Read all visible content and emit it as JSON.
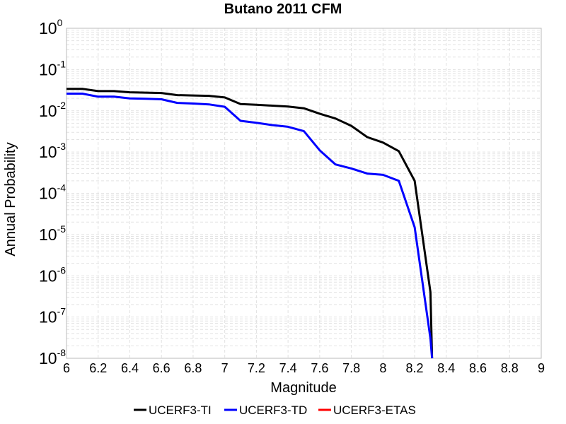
{
  "chart_data": {
    "type": "line",
    "title": "Butano 2011 CFM",
    "xlabel": "Magnitude",
    "ylabel": "Annual Probability",
    "xlim": [
      6,
      9
    ],
    "ylim": [
      1e-08,
      1
    ],
    "yscale": "log",
    "grid": true,
    "legend_position": "bottom",
    "x_ticks": [
      "6",
      "6.2",
      "6.4",
      "6.6",
      "6.8",
      "7",
      "7.2",
      "7.4",
      "7.6",
      "7.8",
      "8",
      "8.2",
      "8.4",
      "8.6",
      "8.8",
      "9"
    ],
    "y_ticks": [
      {
        "base": "10",
        "exp": "0"
      },
      {
        "base": "10",
        "exp": "-1"
      },
      {
        "base": "10",
        "exp": "-2"
      },
      {
        "base": "10",
        "exp": "-3"
      },
      {
        "base": "10",
        "exp": "-4"
      },
      {
        "base": "10",
        "exp": "-5"
      },
      {
        "base": "10",
        "exp": "-6"
      },
      {
        "base": "10",
        "exp": "-7"
      },
      {
        "base": "10",
        "exp": "-8"
      }
    ],
    "series": [
      {
        "name": "UCERF3-TI",
        "color": "#000000",
        "x": [
          6.0,
          6.1,
          6.2,
          6.3,
          6.4,
          6.5,
          6.6,
          6.7,
          6.8,
          6.9,
          7.0,
          7.1,
          7.2,
          7.3,
          7.4,
          7.5,
          7.6,
          7.7,
          7.8,
          7.9,
          8.0,
          8.1,
          8.2,
          8.3,
          8.31
        ],
        "y": [
          0.034,
          0.034,
          0.03,
          0.03,
          0.028,
          0.0275,
          0.027,
          0.024,
          0.0235,
          0.023,
          0.021,
          0.0145,
          0.014,
          0.0133,
          0.0127,
          0.0115,
          0.0085,
          0.0065,
          0.0043,
          0.0023,
          0.0017,
          0.00105,
          0.0002,
          4e-07,
          1e-08
        ]
      },
      {
        "name": "UCERF3-TD",
        "color": "#0000ff",
        "x": [
          6.0,
          6.1,
          6.2,
          6.3,
          6.4,
          6.5,
          6.6,
          6.7,
          6.8,
          6.9,
          7.0,
          7.1,
          7.2,
          7.3,
          7.4,
          7.5,
          7.6,
          7.7,
          7.8,
          7.9,
          8.0,
          8.1,
          8.2,
          8.3,
          8.31
        ],
        "y": [
          0.026,
          0.026,
          0.022,
          0.022,
          0.02,
          0.0195,
          0.019,
          0.0155,
          0.015,
          0.0143,
          0.0125,
          0.0057,
          0.0051,
          0.0045,
          0.0041,
          0.0032,
          0.0011,
          0.0005,
          0.0004,
          0.0003,
          0.00028,
          0.0002,
          1.5e-05,
          3e-08,
          1e-08
        ]
      },
      {
        "name": "UCERF3-ETAS",
        "color": "#ff0000",
        "x": [],
        "y": []
      }
    ]
  }
}
